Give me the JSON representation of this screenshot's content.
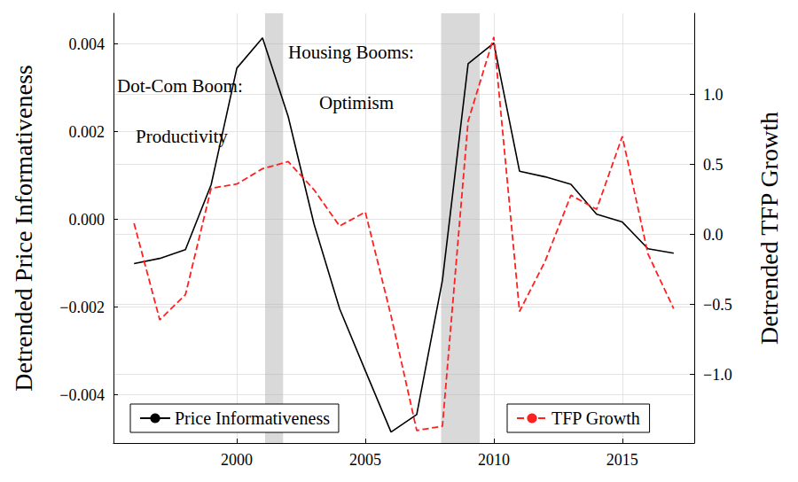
{
  "chart_data": {
    "type": "line",
    "ylabel": "Detrended Price Informativeness",
    "y2label": "Detrended TFP Growth",
    "x": [
      1996,
      1997,
      1998,
      1999,
      2000,
      2001,
      2002,
      2003,
      2004,
      2005,
      2006,
      2007,
      2008,
      2009,
      2010,
      2011,
      2012,
      2013,
      2014,
      2015,
      2016,
      2017
    ],
    "series": [
      {
        "name": "Price Informativeness",
        "color": "#000000",
        "line_style": "solid",
        "values": [
          -0.00101,
          -0.00089,
          -0.00069,
          0.00079,
          0.00345,
          0.00414,
          0.00234,
          -0.0001,
          -0.00204,
          -0.00345,
          -0.00485,
          -0.00445,
          -0.00139,
          0.00355,
          0.00402,
          0.0011,
          0.00097,
          0.0008,
          0.00012,
          -6e-05,
          -0.00067,
          -0.00077
        ]
      },
      {
        "name": "TFP Growth",
        "color": "#ff2020",
        "line_style": "dashed",
        "axis": "y2",
        "values": [
          0.08,
          -0.61,
          -0.43,
          0.33,
          0.36,
          0.47,
          0.52,
          0.32,
          0.06,
          0.16,
          -0.58,
          -1.4,
          -1.37,
          0.81,
          1.41,
          -0.55,
          -0.19,
          0.28,
          0.18,
          0.7,
          -0.14,
          -0.53
        ]
      }
    ],
    "xlim": [
      1995.2,
      2017.8
    ],
    "xticks": [
      2000,
      2005,
      2010,
      2015
    ],
    "ylim": [
      -0.0051,
      0.0047
    ],
    "yticks": [
      {
        "value": -0.004,
        "label": "−0.004"
      },
      {
        "value": -0.002,
        "label": "−0.002"
      },
      {
        "value": 0,
        "label": "0.000"
      },
      0.002,
      0.004
    ],
    "y2lim": [
      -1.49,
      1.58
    ],
    "y2ticks": [
      {
        "value": -1,
        "label": "−1.0"
      },
      {
        "value": -0.5,
        "label": "−0.5"
      },
      {
        "value": 0,
        "label": "0.0"
      },
      {
        "value": 0.5,
        "label": "0.5"
      },
      {
        "value": 1,
        "label": "1.0"
      }
    ],
    "shaded_ranges": [
      [
        2001.1,
        2001.8
      ],
      [
        2007.95,
        2009.45
      ]
    ],
    "annotations": [
      "Dot-Com Boom:",
      "Productivity",
      "Housing Booms:",
      "Optimism"
    ],
    "grid": true,
    "legend": "bottom"
  }
}
